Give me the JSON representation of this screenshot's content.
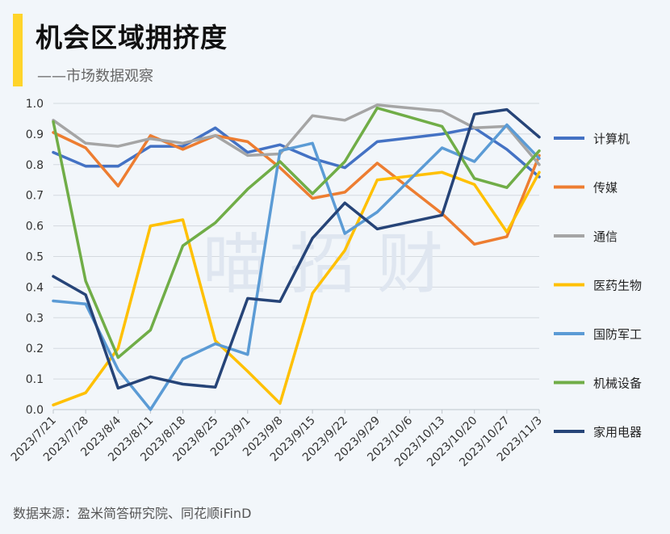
{
  "header": {
    "title": "机会区域拥挤度",
    "subtitle": "——市场数据观察"
  },
  "footer": {
    "source": "数据来源：盈米简答研究院、同花顺iFinD"
  },
  "watermark": "喵 招 财",
  "chart_data": {
    "type": "line",
    "title": "机会区域拥挤度",
    "xlabel": "",
    "ylabel": "",
    "ylim": [
      0,
      1.0
    ],
    "yticks": [
      "0.0",
      "0.1",
      "0.2",
      "0.3",
      "0.4",
      "0.5",
      "0.6",
      "0.7",
      "0.8",
      "0.9",
      "1.0"
    ],
    "grid": true,
    "legend_position": "right",
    "x_tick_labels": [
      "2023/7/21",
      "2023/7/28",
      "2023/8/4",
      "2023/8/11",
      "2023/8/18",
      "2023/8/25",
      "2023/9/1",
      "2023/9/8",
      "2023/9/15",
      "2023/9/22",
      "2023/9/29",
      "2023/10/6",
      "2023/10/13",
      "2023/10/20",
      "2023/10/27",
      "2023/11/3"
    ],
    "x": [
      "2023/7/21",
      "2023/7/28",
      "2023/8/4",
      "2023/8/11",
      "2023/8/18",
      "2023/8/25",
      "2023/9/1",
      "2023/9/8",
      "2023/9/15",
      "2023/9/22",
      "2023/9/29",
      "2023/10/13",
      "2023/10/20",
      "2023/10/27",
      "2023/11/3"
    ],
    "series": [
      {
        "name": "计算机",
        "color": "#4472c4",
        "values": [
          0.84,
          0.795,
          0.795,
          0.86,
          0.86,
          0.92,
          0.84,
          0.865,
          0.82,
          0.79,
          0.875,
          0.9,
          0.92,
          0.85,
          0.76
        ]
      },
      {
        "name": "传媒",
        "color": "#ed7d31",
        "values": [
          0.905,
          0.855,
          0.73,
          0.895,
          0.85,
          0.895,
          0.875,
          0.79,
          0.69,
          0.71,
          0.805,
          0.64,
          0.54,
          0.565,
          0.83
        ]
      },
      {
        "name": "通信",
        "color": "#a5a5a5",
        "values": [
          0.945,
          0.87,
          0.86,
          0.885,
          0.87,
          0.895,
          0.83,
          0.835,
          0.96,
          0.945,
          0.995,
          0.975,
          0.92,
          0.925,
          0.8
        ]
      },
      {
        "name": "医药生物",
        "color": "#ffc000",
        "values": [
          0.015,
          0.055,
          0.2,
          0.6,
          0.62,
          0.225,
          0.125,
          0.02,
          0.38,
          0.52,
          0.75,
          0.775,
          0.735,
          0.58,
          0.775
        ]
      },
      {
        "name": "国防军工",
        "color": "#5b9bd5",
        "values": [
          0.355,
          0.345,
          0.13,
          0.0,
          0.165,
          0.215,
          0.18,
          0.845,
          0.87,
          0.575,
          0.645,
          0.855,
          0.81,
          0.93,
          0.82
        ]
      },
      {
        "name": "机械设备",
        "color": "#70ad47",
        "values": [
          0.94,
          0.42,
          0.17,
          0.26,
          0.535,
          0.61,
          0.72,
          0.81,
          0.705,
          0.81,
          0.985,
          0.925,
          0.755,
          0.725,
          0.845
        ]
      },
      {
        "name": "家用电器",
        "color": "#264478",
        "values": [
          0.435,
          0.375,
          0.07,
          0.107,
          0.083,
          0.073,
          0.363,
          0.353,
          0.56,
          0.675,
          0.59,
          0.635,
          0.965,
          0.98,
          0.89
        ]
      }
    ]
  }
}
